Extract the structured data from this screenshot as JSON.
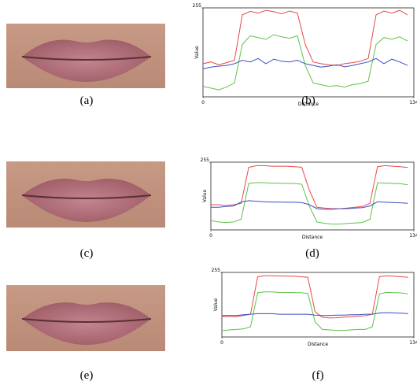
{
  "images": [
    {
      "caption": "(a)"
    },
    {
      "caption": "(c)"
    },
    {
      "caption": "(e)"
    }
  ],
  "chart_data": [
    {
      "type": "line",
      "caption": "(b)",
      "x_label": "Distance",
      "y_label": "Value",
      "x": [
        0,
        5,
        10,
        15,
        20,
        25,
        30,
        35,
        40,
        45,
        50,
        55,
        60,
        65,
        70,
        75,
        80,
        85,
        90,
        95,
        100,
        105,
        110,
        115,
        120,
        125,
        130
      ],
      "xlim": [
        0,
        134
      ],
      "xticks": [
        0,
        134
      ],
      "ylim": [
        0,
        255
      ],
      "yticks": [
        255
      ],
      "series": [
        {
          "color": "#e8494a",
          "values": [
            95,
            100,
            92,
            98,
            105,
            235,
            245,
            240,
            248,
            244,
            238,
            246,
            240,
            150,
            100,
            95,
            92,
            90,
            95,
            98,
            102,
            110,
            235,
            246,
            240,
            248,
            235
          ]
        },
        {
          "color": "#5ec24a",
          "values": [
            30,
            25,
            20,
            28,
            40,
            150,
            175,
            170,
            165,
            178,
            172,
            168,
            175,
            90,
            40,
            35,
            30,
            32,
            28,
            35,
            38,
            45,
            150,
            170,
            165,
            172,
            160
          ]
        },
        {
          "color": "#3a4fc0",
          "values": [
            80,
            85,
            88,
            90,
            95,
            105,
            100,
            110,
            95,
            108,
            102,
            100,
            105,
            95,
            90,
            85,
            88,
            92,
            86,
            90,
            95,
            100,
            110,
            95,
            108,
            100,
            90
          ]
        }
      ]
    },
    {
      "type": "line",
      "caption": "(d)",
      "x_label": "Distance",
      "y_label": "Value",
      "x": [
        0,
        5,
        10,
        15,
        20,
        25,
        30,
        35,
        40,
        45,
        50,
        55,
        60,
        65,
        70,
        75,
        80,
        85,
        90,
        95,
        100,
        105,
        110,
        115,
        120,
        125,
        130
      ],
      "xlim": [
        0,
        134
      ],
      "xticks": [
        0,
        134
      ],
      "ylim": [
        0,
        255
      ],
      "yticks": [
        255
      ],
      "series": [
        {
          "color": "#e8494a",
          "values": [
            95,
            95,
            92,
            95,
            100,
            235,
            242,
            242,
            240,
            240,
            240,
            238,
            236,
            150,
            85,
            82,
            80,
            80,
            82,
            85,
            88,
            100,
            238,
            242,
            240,
            238,
            235
          ]
        },
        {
          "color": "#5ec24a",
          "values": [
            35,
            30,
            28,
            30,
            40,
            175,
            178,
            178,
            176,
            176,
            175,
            175,
            172,
            90,
            30,
            25,
            22,
            22,
            24,
            26,
            28,
            40,
            178,
            176,
            175,
            174,
            170
          ]
        },
        {
          "color": "#3a4fc0",
          "values": [
            85,
            85,
            88,
            90,
            105,
            110,
            108,
            106,
            105,
            105,
            104,
            104,
            103,
            95,
            80,
            78,
            78,
            80,
            80,
            82,
            84,
            90,
            106,
            104,
            103,
            102,
            100
          ]
        }
      ]
    },
    {
      "type": "line",
      "caption": "(f)",
      "x_label": "Distance",
      "y_label": "Value",
      "x": [
        0,
        5,
        10,
        15,
        20,
        25,
        30,
        35,
        40,
        45,
        50,
        55,
        60,
        65,
        70,
        75,
        80,
        85,
        90,
        95,
        100,
        105,
        110,
        115,
        120,
        125,
        130
      ],
      "xlim": [
        0,
        134
      ],
      "xticks": [
        0,
        134
      ],
      "ylim": [
        0,
        255
      ],
      "yticks": [
        255
      ],
      "series": [
        {
          "color": "#e8494a",
          "values": [
            80,
            82,
            80,
            85,
            90,
            238,
            242,
            242,
            241,
            240,
            240,
            238,
            236,
            100,
            78,
            75,
            76,
            78,
            80,
            82,
            84,
            90,
            238,
            242,
            240,
            238,
            236
          ]
        },
        {
          "color": "#5ec24a",
          "values": [
            25,
            28,
            30,
            32,
            40,
            175,
            178,
            178,
            176,
            176,
            175,
            175,
            172,
            60,
            30,
            28,
            26,
            26,
            28,
            30,
            30,
            40,
            170,
            176,
            175,
            174,
            170
          ]
        },
        {
          "color": "#3a4fc0",
          "values": [
            85,
            85,
            85,
            88,
            90,
            92,
            92,
            92,
            90,
            90,
            90,
            90,
            90,
            86,
            85,
            85,
            86,
            86,
            88,
            88,
            90,
            90,
            95,
            96,
            95,
            94,
            92
          ]
        }
      ]
    }
  ]
}
